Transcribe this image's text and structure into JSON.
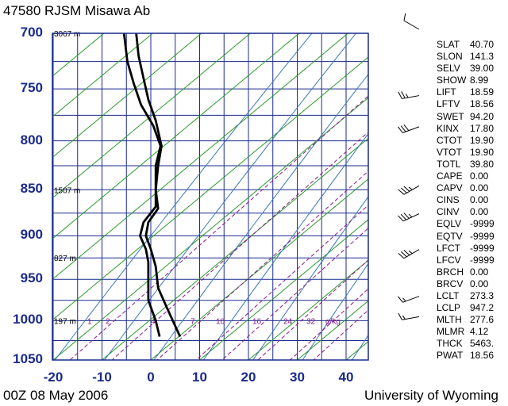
{
  "header": {
    "title": "47580 RJSM Misawa Ab"
  },
  "footer": {
    "time_label": "00Z 08 May 2006",
    "source": "University of Wyoming"
  },
  "chart_data": {
    "type": "line",
    "title": "47580 RJSM Misawa Ab",
    "xlabel": "",
    "ylabel": "",
    "x_ticks": [
      -20,
      -10,
      0,
      10,
      20,
      30,
      40
    ],
    "y_ticks": [
      700,
      750,
      800,
      850,
      900,
      950,
      1000,
      1050
    ],
    "xlim": [
      -20,
      45
    ],
    "ylim": [
      1050,
      700
    ],
    "y_scale": "log-pressure",
    "grid": true,
    "height_labels": [
      {
        "p": 700,
        "label": "3067 m"
      },
      {
        "p": 850,
        "label": "1507 m"
      },
      {
        "p": 925,
        "label": "827 m"
      },
      {
        "p": 1000,
        "label": "197 m"
      }
    ],
    "mixing_ratio_labels": [
      "1",
      "2",
      "4",
      "7",
      "10",
      "16",
      "24",
      "32",
      "g/kg"
    ],
    "series": [
      {
        "kind": "temperature",
        "points": [
          [
            6.0,
            1020
          ],
          [
            4.5,
            1000
          ],
          [
            3.0,
            980
          ],
          [
            1.5,
            960
          ],
          [
            1.0,
            935
          ],
          [
            0.0,
            915
          ],
          [
            -1.0,
            900
          ],
          [
            -0.5,
            885
          ],
          [
            1.5,
            870
          ],
          [
            1.0,
            850
          ],
          [
            1.5,
            825
          ],
          [
            2.2,
            805
          ],
          [
            1.0,
            780
          ],
          [
            -0.5,
            760
          ],
          [
            -1.5,
            740
          ],
          [
            -2.5,
            720
          ],
          [
            -3.0,
            700
          ]
        ]
      },
      {
        "kind": "dewpoint",
        "points": [
          [
            1.8,
            1020
          ],
          [
            1.0,
            1000
          ],
          [
            -0.5,
            975
          ],
          [
            -0.5,
            955
          ],
          [
            -0.5,
            930
          ],
          [
            -1.0,
            915
          ],
          [
            -2.2,
            900
          ],
          [
            -1.5,
            885
          ],
          [
            1.0,
            868
          ],
          [
            1.0,
            850
          ],
          [
            1.0,
            825
          ],
          [
            2.0,
            805
          ],
          [
            0.5,
            785
          ],
          [
            -2.0,
            765
          ],
          [
            -3.5,
            745
          ],
          [
            -4.8,
            725
          ],
          [
            -5.5,
            700
          ]
        ]
      }
    ]
  },
  "wind_barbs": [
    {
      "p": 700,
      "dir": 300,
      "speed": 10
    },
    {
      "p": 760,
      "dir": 260,
      "speed": 25
    },
    {
      "p": 790,
      "dir": 250,
      "speed": 30
    },
    {
      "p": 850,
      "dir": 240,
      "speed": 35
    },
    {
      "p": 880,
      "dir": 245,
      "speed": 35
    },
    {
      "p": 920,
      "dir": 240,
      "speed": 35
    },
    {
      "p": 975,
      "dir": 250,
      "speed": 15
    },
    {
      "p": 1000,
      "dir": 260,
      "speed": 15
    }
  ],
  "indices": [
    {
      "key": "SLAT",
      "value": "40.70"
    },
    {
      "key": "SLON",
      "value": "141.3"
    },
    {
      "key": "SELV",
      "value": "39.00"
    },
    {
      "key": "SHOW",
      "value": "8.99"
    },
    {
      "key": "LIFT",
      "value": "18.59"
    },
    {
      "key": "LFTV",
      "value": "18.56"
    },
    {
      "key": "SWET",
      "value": "94.20"
    },
    {
      "key": "KINX",
      "value": "17.80"
    },
    {
      "key": "CTOT",
      "value": "19.90"
    },
    {
      "key": "VTOT",
      "value": "19.90"
    },
    {
      "key": "TOTL",
      "value": "39.80"
    },
    {
      "key": "CAPE",
      "value": "0.00"
    },
    {
      "key": "CAPV",
      "value": "0.00"
    },
    {
      "key": "CINS",
      "value": "0.00"
    },
    {
      "key": "CINV",
      "value": "0.00"
    },
    {
      "key": "EQLV",
      "value": "-9999"
    },
    {
      "key": "EQTV",
      "value": "-9999"
    },
    {
      "key": "LFCT",
      "value": "-9999"
    },
    {
      "key": "LFCV",
      "value": "-9999"
    },
    {
      "key": "BRCH",
      "value": "0.00"
    },
    {
      "key": "BRCV",
      "value": "0.00"
    },
    {
      "key": "LCLT",
      "value": "273.3"
    },
    {
      "key": "LCLP",
      "value": "947.2"
    },
    {
      "key": "MLTH",
      "value": "277.6"
    },
    {
      "key": "MLMR",
      "value": "4.12"
    },
    {
      "key": "THCK",
      "value": "5463."
    },
    {
      "key": "PWAT",
      "value": "18.56"
    }
  ]
}
